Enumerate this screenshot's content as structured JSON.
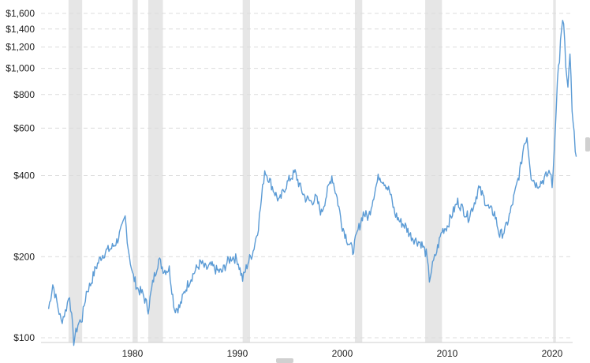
{
  "chart_data": {
    "type": "line",
    "title": "",
    "xlabel": "",
    "ylabel": "",
    "yscale": "log",
    "ylim": [
      100,
      1700
    ],
    "xlim": [
      1972,
      2022.4
    ],
    "grid": true,
    "y_ticks": [
      {
        "value": 100,
        "label": "$100"
      },
      {
        "value": 200,
        "label": "$200"
      },
      {
        "value": 400,
        "label": "$400"
      },
      {
        "value": 600,
        "label": "$600"
      },
      {
        "value": 800,
        "label": "$800"
      },
      {
        "value": 1000,
        "label": "$1,000"
      },
      {
        "value": 1200,
        "label": "$1,200"
      },
      {
        "value": 1400,
        "label": "$1,400"
      },
      {
        "value": 1600,
        "label": "$1,600"
      }
    ],
    "x_ticks": [
      {
        "value": 1980,
        "label": "1980"
      },
      {
        "value": 1990,
        "label": "1990"
      },
      {
        "value": 2000,
        "label": "2000"
      },
      {
        "value": 2010,
        "label": "2010"
      },
      {
        "value": 2020,
        "label": "2020"
      }
    ],
    "recessions": [
      [
        1973.9,
        1975.2
      ],
      [
        1980.0,
        1980.5
      ],
      [
        1981.5,
        1982.9
      ],
      [
        1990.5,
        1991.2
      ],
      [
        2001.2,
        2001.9
      ],
      [
        2007.9,
        2009.5
      ],
      [
        2020.1,
        2020.35
      ]
    ],
    "series": [
      {
        "color": "#5b9bd5",
        "x": [
          1972.0,
          1972.4,
          1972.8,
          1973.2,
          1973.6,
          1974.0,
          1974.4,
          1974.8,
          1975.2,
          1975.6,
          1976.0,
          1976.5,
          1977.0,
          1977.5,
          1978.0,
          1978.5,
          1979.0,
          1979.3,
          1979.6,
          1980.0,
          1980.5,
          1981.0,
          1981.5,
          1982.0,
          1982.5,
          1983.0,
          1983.5,
          1984.0,
          1984.5,
          1985.0,
          1985.5,
          1986.0,
          1986.5,
          1987.0,
          1987.5,
          1988.0,
          1988.5,
          1989.0,
          1989.5,
          1990.0,
          1990.5,
          1991.0,
          1991.5,
          1992.0,
          1992.3,
          1992.6,
          1993.0,
          1993.5,
          1994.0,
          1994.5,
          1995.0,
          1995.5,
          1996.0,
          1996.5,
          1997.0,
          1997.5,
          1998.0,
          1998.5,
          1999.0,
          1999.5,
          2000.0,
          2000.5,
          2001.0,
          2001.5,
          2002.0,
          2002.5,
          2003.0,
          2003.5,
          2004.0,
          2004.5,
          2005.0,
          2005.5,
          2006.0,
          2006.5,
          2007.0,
          2007.5,
          2008.0,
          2008.3,
          2008.6,
          2009.0,
          2009.5,
          2010.0,
          2010.5,
          2011.0,
          2011.5,
          2012.0,
          2012.5,
          2013.0,
          2013.5,
          2014.0,
          2014.5,
          2015.0,
          2015.5,
          2016.0,
          2016.5,
          2017.0,
          2017.3,
          2017.6,
          2018.0,
          2018.5,
          2019.0,
          2019.5,
          2019.8,
          2020.0,
          2020.2,
          2020.4,
          2020.6,
          2020.9,
          2021.1,
          2021.3,
          2021.5,
          2021.7,
          2021.9,
          2022.1,
          2022.3
        ],
        "values": [
          128,
          158,
          135,
          115,
          125,
          145,
          97,
          112,
          118,
          148,
          158,
          182,
          200,
          210,
          215,
          228,
          255,
          280,
          215,
          172,
          152,
          145,
          128,
          165,
          195,
          178,
          180,
          128,
          130,
          150,
          165,
          178,
          190,
          180,
          185,
          178,
          175,
          190,
          200,
          195,
          165,
          190,
          210,
          260,
          330,
          420,
          390,
          350,
          320,
          360,
          390,
          410,
          360,
          330,
          320,
          330,
          290,
          340,
          400,
          330,
          260,
          230,
          210,
          250,
          290,
          280,
          340,
          400,
          380,
          350,
          290,
          270,
          260,
          240,
          230,
          225,
          205,
          165,
          185,
          210,
          250,
          260,
          290,
          320,
          300,
          280,
          310,
          360,
          330,
          300,
          290,
          240,
          250,
          290,
          350,
          430,
          520,
          560,
          400,
          370,
          380,
          400,
          420,
          360,
          500,
          760,
          1000,
          1350,
          1500,
          1000,
          800,
          1150,
          680,
          560,
          470
        ]
      }
    ]
  },
  "right_edge_marker": ""
}
